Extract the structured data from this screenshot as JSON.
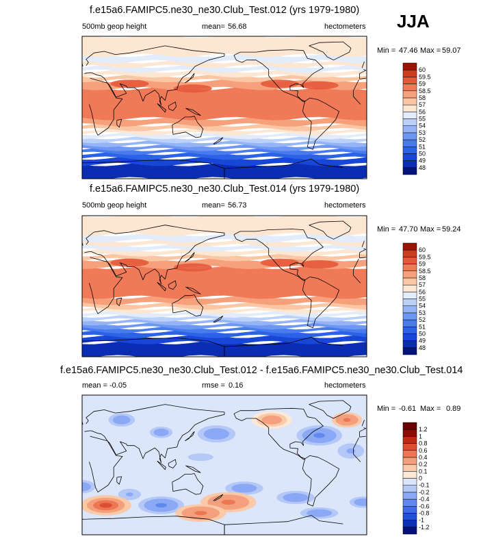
{
  "season": "JJA",
  "colors": {
    "ocean_base": "#dfeafb",
    "coast": "#000000",
    "frame": "#000000"
  },
  "chart_data": [
    {
      "type": "heatmap",
      "title": "f.e15a6.FAMIPC5.ne30_ne30.Club_Test.012 (yrs 1979-1980)",
      "variable": "500mb geop height",
      "mean_label": "mean=",
      "mean": "56.68",
      "units": "hectometers",
      "min_label": "Min =",
      "min": "47.46",
      "max_label": "Max =",
      "max": "59.07",
      "levels": [
        "48",
        "49",
        "50",
        "51",
        "52",
        "53",
        "54",
        "55",
        "56",
        "57",
        "58",
        "58.5",
        "59",
        "59.5",
        "60"
      ],
      "colors": [
        "#04147a",
        "#0a2db4",
        "#1846d6",
        "#2c62e6",
        "#4a7bee",
        "#6d97f3",
        "#94b4f6",
        "#bcd1fa",
        "#e2ecfb",
        "#fde6d2",
        "#fbc6a4",
        "#f7a07c",
        "#f07a58",
        "#e4593a",
        "#cd3b20",
        "#9b1305"
      ],
      "bands_lat_edges": [
        -90,
        -72,
        -64,
        -58,
        -53,
        -48,
        -43,
        -38,
        -33,
        -28,
        -22,
        -14,
        24,
        34,
        40,
        46,
        52,
        58,
        66,
        90
      ],
      "bands_levels": [
        48,
        49,
        50,
        51,
        52,
        53,
        54,
        55,
        56,
        57,
        58,
        58.5,
        58,
        57,
        56,
        55,
        56,
        55,
        56
      ]
    },
    {
      "type": "heatmap",
      "title": "f.e15a6.FAMIPC5.ne30_ne30.Club_Test.014 (yrs 1979-1980)",
      "variable": "500mb geop height",
      "mean_label": "mean=",
      "mean": "56.73",
      "units": "hectometers",
      "min_label": "Min =",
      "min": "47.70",
      "max_label": "Max =",
      "max": "59.24",
      "levels": [
        "48",
        "49",
        "50",
        "51",
        "52",
        "53",
        "54",
        "55",
        "56",
        "57",
        "58",
        "58.5",
        "59",
        "59.5",
        "60"
      ],
      "colors": [
        "#04147a",
        "#0a2db4",
        "#1846d6",
        "#2c62e6",
        "#4a7bee",
        "#6d97f3",
        "#94b4f6",
        "#bcd1fa",
        "#e2ecfb",
        "#fde6d2",
        "#fbc6a4",
        "#f7a07c",
        "#f07a58",
        "#e4593a",
        "#cd3b20",
        "#9b1305"
      ],
      "bands_lat_edges": [
        -90,
        -72,
        -64,
        -58,
        -53,
        -48,
        -43,
        -38,
        -33,
        -28,
        -22,
        -14,
        24,
        34,
        40,
        46,
        52,
        58,
        66,
        90
      ],
      "bands_levels": [
        48,
        49,
        50,
        51,
        52,
        53,
        54,
        55,
        56,
        57,
        58,
        58.5,
        58,
        57,
        56,
        55,
        56,
        55,
        56
      ]
    },
    {
      "type": "heatmap",
      "title": "f.e15a6.FAMIPC5.ne30_ne30.Club_Test.012 - f.e15a6.FAMIPC5.ne30_ne30.Club_Test.014",
      "variable": "",
      "mean_label": "mean =",
      "mean": "-0.05",
      "rmse_label": "rmse =",
      "rmse": "0.16",
      "units": "hectometers",
      "min_label": "Min =",
      "min": "-0.61",
      "max_label": "Max =",
      "max": "0.89",
      "levels": [
        "-1.2",
        "-1",
        "-0.8",
        "-0.6",
        "-0.4",
        "-0.2",
        "-0.1",
        "0",
        "0.1",
        "0.2",
        "0.4",
        "0.6",
        "0.8",
        "1",
        "1.2"
      ],
      "colors": [
        "#06107a",
        "#0c30b8",
        "#2050d8",
        "#3e6ae6",
        "#6088ee",
        "#8aa8f4",
        "#b4c8f8",
        "#dbe6fb",
        "#fbe8d6",
        "#f9c9a8",
        "#f4a07c",
        "#ec7752",
        "#dc4e30",
        "#c02a14",
        "#8c0c04",
        "#6a0402"
      ],
      "blobs": [
        {
          "lon": -60,
          "lat": 38,
          "rx": 18,
          "ry": 8,
          "v": -0.5
        },
        {
          "lon": -25,
          "lat": 58,
          "rx": 12,
          "ry": 6,
          "v": 0.4
        },
        {
          "lon": 50,
          "lat": 58,
          "rx": 14,
          "ry": 7,
          "v": -0.3
        },
        {
          "lon": -120,
          "lat": 58,
          "rx": 16,
          "ry": 7,
          "v": 0.3
        },
        {
          "lon": 170,
          "lat": 40,
          "rx": 20,
          "ry": 9,
          "v": -0.3
        },
        {
          "lon": 100,
          "lat": 42,
          "rx": 12,
          "ry": 6,
          "v": -0.3
        },
        {
          "lon": -20,
          "lat": 18,
          "rx": 14,
          "ry": 8,
          "v": -0.25
        },
        {
          "lon": 150,
          "lat": 10,
          "rx": 20,
          "ry": 6,
          "v": -0.2
        },
        {
          "lon": 0,
          "lat": -28,
          "rx": 14,
          "ry": 7,
          "v": -0.35
        },
        {
          "lon": 60,
          "lat": -38,
          "rx": 12,
          "ry": 6,
          "v": -0.25
        },
        {
          "lon": -155,
          "lat": -30,
          "rx": 20,
          "ry": 7,
          "v": -0.3
        },
        {
          "lon": -90,
          "lat": -42,
          "rx": 20,
          "ry": 7,
          "v": -0.35
        },
        {
          "lon": -175,
          "lat": -48,
          "rx": 22,
          "ry": 8,
          "v": 0.5
        },
        {
          "lon": -5,
          "lat": -48,
          "rx": 14,
          "ry": 6,
          "v": -0.3
        },
        {
          "lon": 30,
          "lat": -52,
          "rx": 20,
          "ry": 8,
          "v": 0.75
        },
        {
          "lon": 100,
          "lat": -52,
          "rx": 18,
          "ry": 7,
          "v": -0.5
        },
        {
          "lon": 150,
          "lat": -62,
          "rx": 20,
          "ry": 7,
          "v": 0.4
        },
        {
          "lon": -60,
          "lat": -62,
          "rx": 20,
          "ry": 6,
          "v": -0.3
        }
      ]
    }
  ]
}
